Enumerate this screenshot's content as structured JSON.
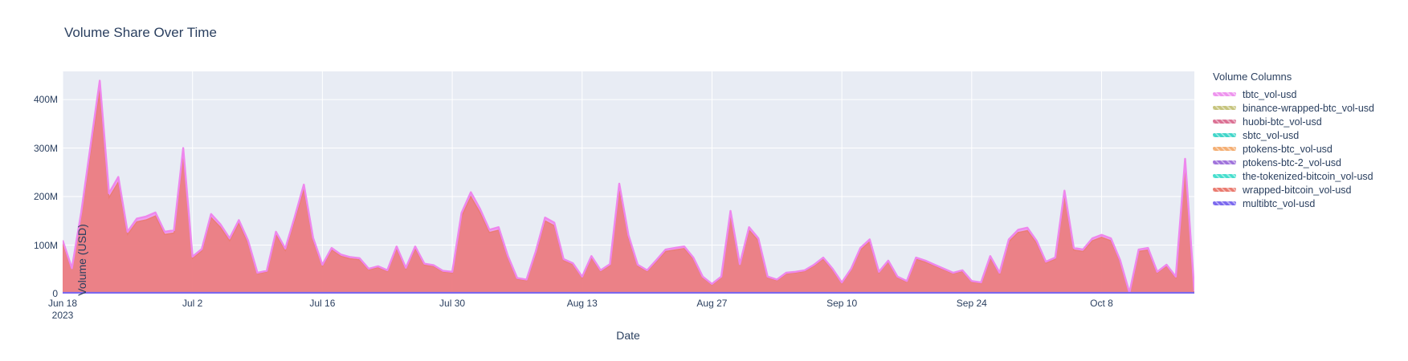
{
  "title": "Volume Share Over Time",
  "xaxis": {
    "label": "Date",
    "ticks": [
      {
        "label": "Jun 18",
        "sublabel": "2023",
        "day": 0
      },
      {
        "label": "Jul 2",
        "day": 14
      },
      {
        "label": "Jul 16",
        "day": 28
      },
      {
        "label": "Jul 30",
        "day": 42
      },
      {
        "label": "Aug 13",
        "day": 56
      },
      {
        "label": "Aug 27",
        "day": 70
      },
      {
        "label": "Sep 10",
        "day": 84
      },
      {
        "label": "Sep 24",
        "day": 98
      },
      {
        "label": "Oct 8",
        "day": 112
      }
    ]
  },
  "yaxis": {
    "label": "Volume (USD)",
    "ticks": [
      {
        "label": "0",
        "value_musd": 0
      },
      {
        "label": "100M",
        "value_musd": 100
      },
      {
        "label": "200M",
        "value_musd": 200
      },
      {
        "label": "300M",
        "value_musd": 300
      },
      {
        "label": "400M",
        "value_musd": 400
      }
    ],
    "max_musd": 458
  },
  "legend": {
    "title": "Volume Columns",
    "items": [
      {
        "label": "tbtc_vol-usd",
        "color": "#ee93ee"
      },
      {
        "label": "binance-wrapped-btc_vol-usd",
        "color": "#c6c47d"
      },
      {
        "label": "huobi-btc_vol-usd",
        "color": "#db7093"
      },
      {
        "label": "sbtc_vol-usd",
        "color": "#40d6c9"
      },
      {
        "label": "ptokens-btc_vol-usd",
        "color": "#f4ae72"
      },
      {
        "label": "ptokens-btc-2_vol-usd",
        "color": "#9f72db"
      },
      {
        "label": "the-tokenized-bitcoin_vol-usd",
        "color": "#45decd"
      },
      {
        "label": "wrapped-bitcoin_vol-usd",
        "color": "#ea7a6f"
      },
      {
        "label": "multibtc_vol-usd",
        "color": "#7b68ee"
      }
    ]
  },
  "colors": {
    "paper_bg": "#ffffff",
    "plot_bg": "#e8ecf4",
    "grid": "#ffffff",
    "text": "#2a3f5f",
    "wrapped_fill": "#ea7a6f",
    "tbtc_line": "#ee87ed",
    "multibtc_line": "#7b68ee"
  },
  "chart_data": {
    "type": "area",
    "stacked": true,
    "title": "Volume Share Over Time",
    "xlabel": "Date",
    "ylabel": "Volume (USD)",
    "legend_position": "right",
    "grid": true,
    "x_start": "2023-06-18",
    "x_end": "2023-10-18",
    "x_unit": "day",
    "ylim_usd": [
      0,
      458000000
    ],
    "values_unit": "millions USD, estimated from plot",
    "series": [
      {
        "name": "wrapped-bitcoin_vol-usd",
        "color": "#ea7a6f",
        "values_musd": [
          105,
          50,
          160,
          290,
          420,
          198,
          230,
          122,
          148,
          152,
          160,
          122,
          125,
          287,
          73,
          88,
          157,
          137,
          109,
          145,
          104,
          41,
          45,
          122,
          89,
          150,
          215,
          110,
          57,
          90,
          77,
          72,
          70,
          49,
          54,
          46,
          93,
          51,
          93,
          59,
          56,
          45,
          43,
          159,
          200,
          167,
          126,
          131,
          74,
          30,
          27,
          83,
          150,
          140,
          68,
          60,
          33,
          74,
          46,
          58,
          217,
          115,
          57,
          46,
          66,
          87,
          90,
          93,
          71,
          33,
          18,
          33,
          163,
          58,
          131,
          109,
          33,
          27,
          41,
          43,
          46,
          57,
          71,
          49,
          21,
          49,
          90,
          107,
          43,
          65,
          33,
          24,
          71,
          65,
          57,
          49,
          41,
          46,
          24,
          21,
          74,
          41,
          107,
          126,
          130,
          104,
          63,
          71,
          203,
          90,
          87,
          109,
          116,
          109,
          66,
          0,
          87,
          90,
          43,
          57,
          33,
          266,
          3
        ]
      },
      {
        "name": "tbtc_vol-usd",
        "color": "#ee93ee",
        "approx_fraction_of_wrapped": 0.045,
        "min_musd": 2,
        "rendering": "thin pink band and line on top of stack"
      },
      {
        "name": "binance-wrapped-btc_vol-usd",
        "color": "#c6c47d",
        "values_musd_const": 0
      },
      {
        "name": "huobi-btc_vol-usd",
        "color": "#db7093",
        "values_musd_const": 0
      },
      {
        "name": "sbtc_vol-usd",
        "color": "#40d6c9",
        "values_musd_const": 0
      },
      {
        "name": "ptokens-btc_vol-usd",
        "color": "#f4ae72",
        "values_musd_const": 0
      },
      {
        "name": "ptokens-btc-2_vol-usd",
        "color": "#9f72db",
        "values_musd_const": 0
      },
      {
        "name": "the-tokenized-bitcoin_vol-usd",
        "color": "#45decd",
        "values_musd_const": 0
      },
      {
        "name": "multibtc_vol-usd",
        "color": "#7b68ee",
        "values_musd_const": 0,
        "rendering": "flat blue line along zero baseline"
      }
    ]
  }
}
